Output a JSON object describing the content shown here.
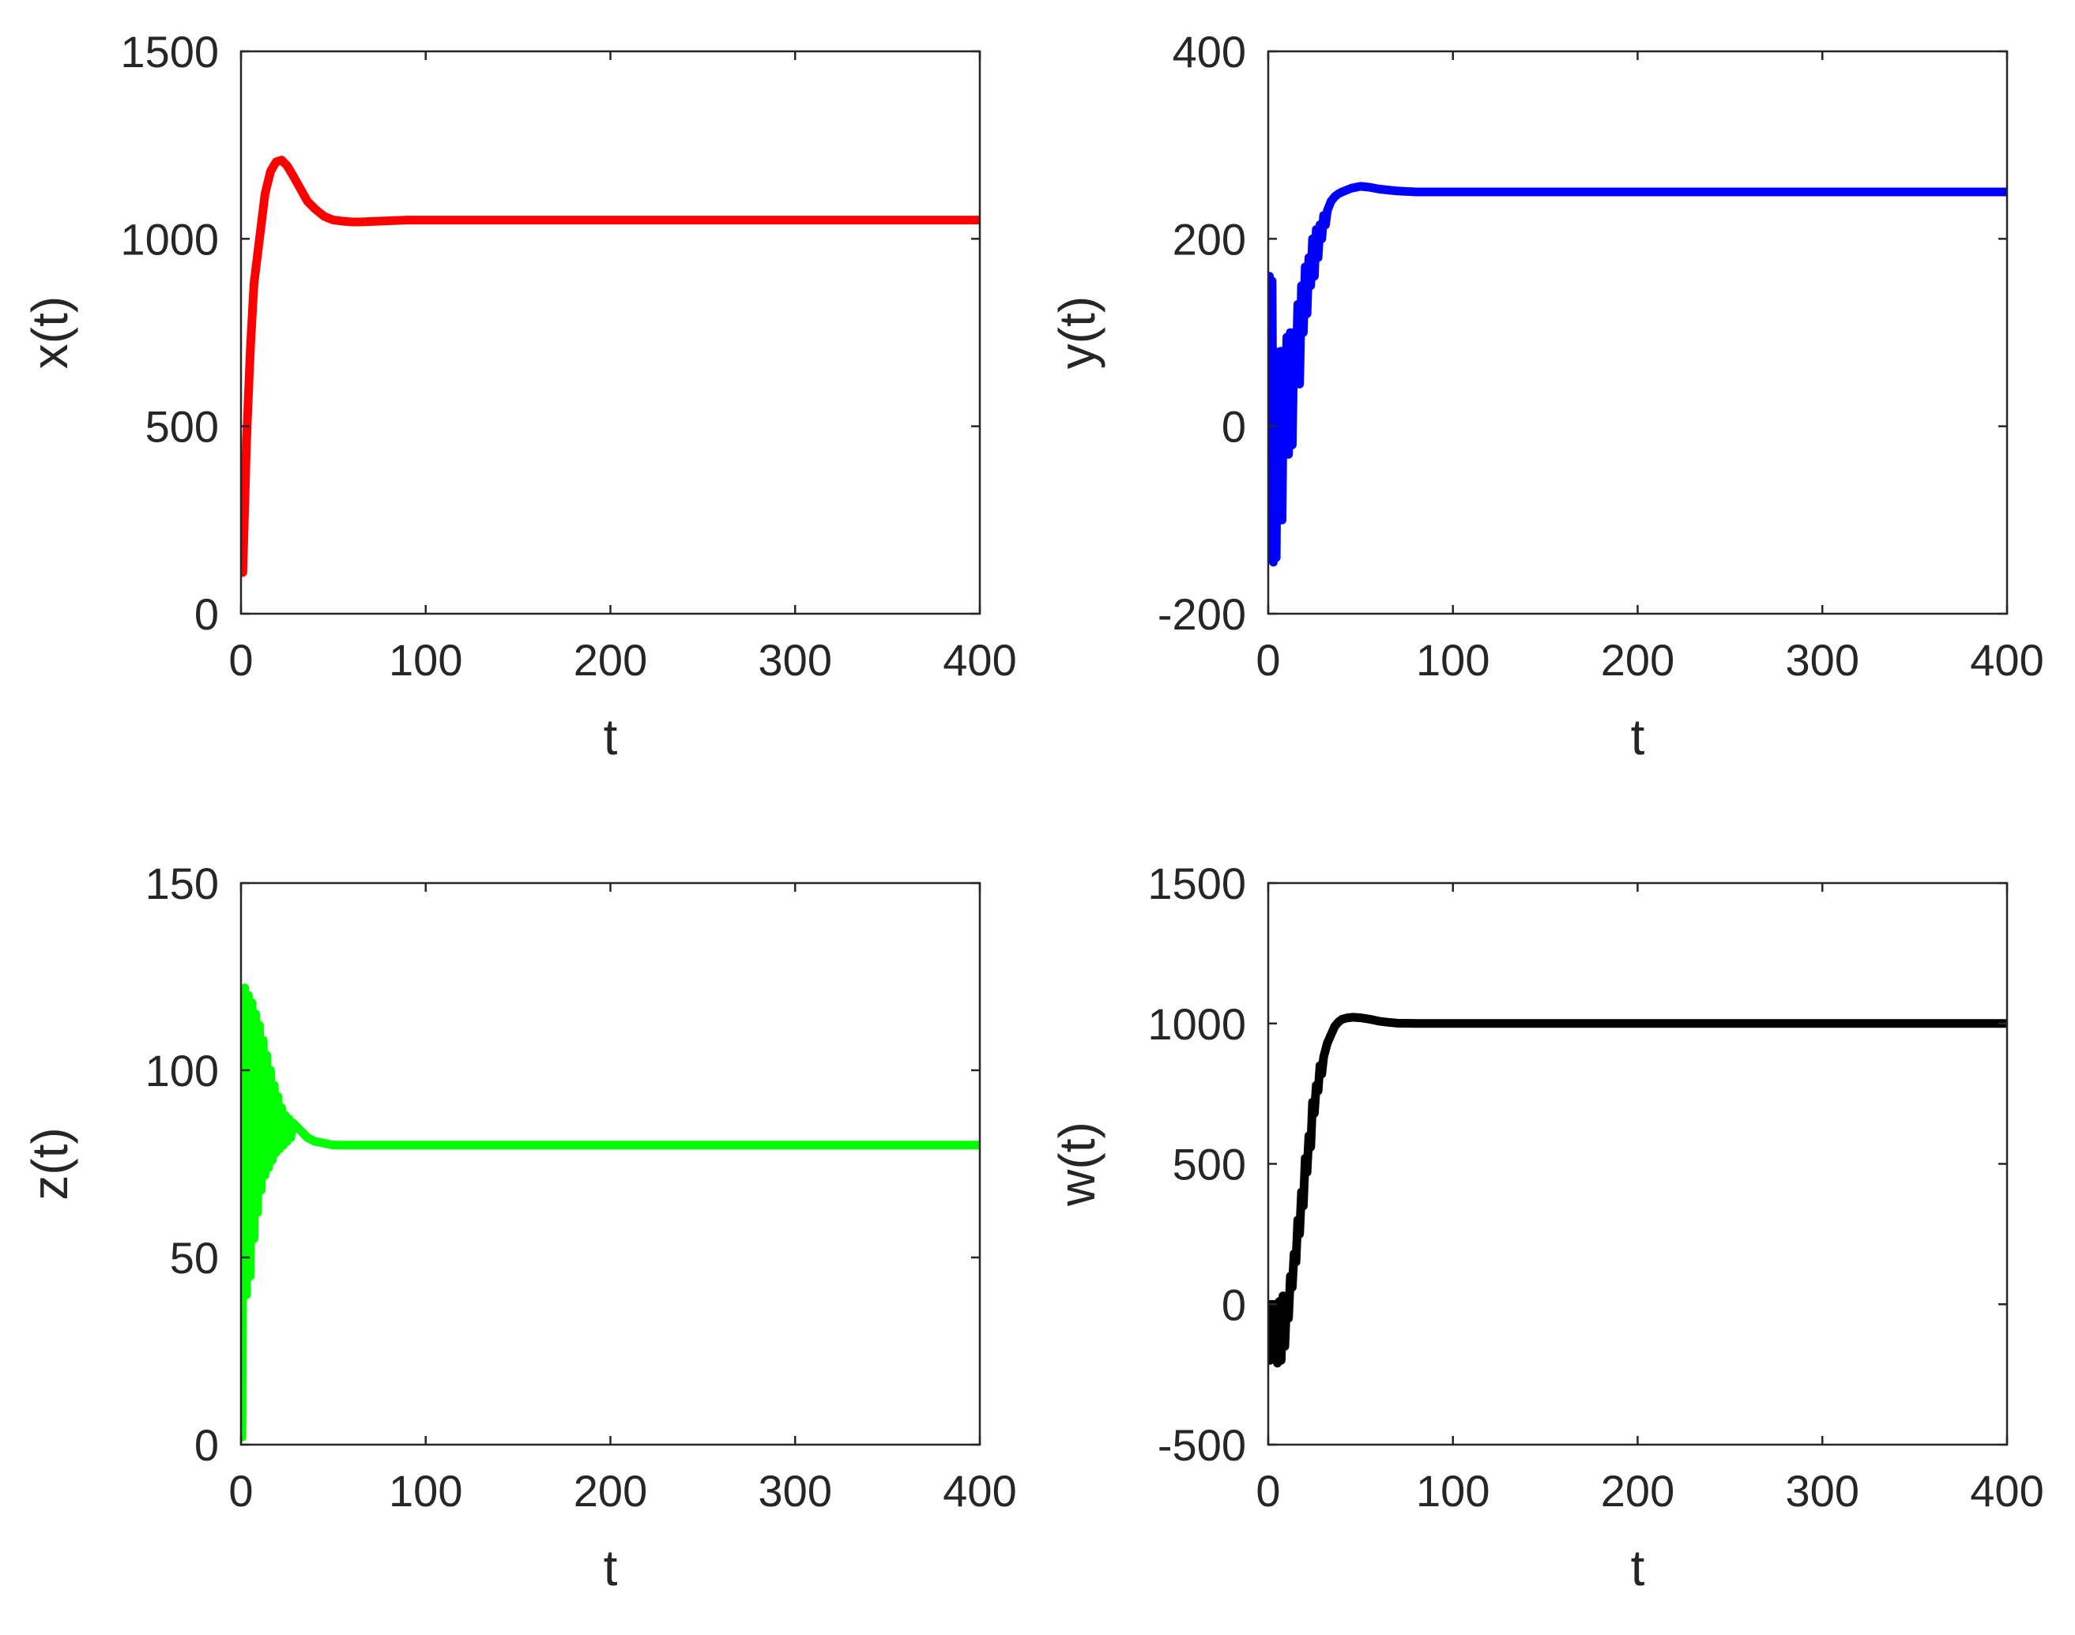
{
  "chart_data": [
    {
      "id": "x",
      "type": "line",
      "xlabel": "t",
      "ylabel": "x(t)",
      "xlim": [
        0,
        400
      ],
      "ylim": [
        0,
        1500
      ],
      "xticks": [
        0,
        100,
        200,
        300,
        400
      ],
      "yticks": [
        0,
        500,
        1000,
        1500
      ],
      "xtick_labels": [
        "0",
        "100",
        "200",
        "300",
        "400"
      ],
      "ytick_labels": [
        "0",
        "500",
        "1000",
        "1500"
      ],
      "grid": false,
      "color": "#ff0000",
      "series": [
        {
          "x": [
            0,
            1,
            3,
            5,
            7,
            10,
            13,
            16,
            19,
            22,
            25,
            28,
            32,
            36,
            40,
            45,
            50,
            55,
            60,
            65,
            70,
            80,
            90,
            100,
            150,
            200,
            300,
            400
          ],
          "y": [
            110,
            110,
            460,
            700,
            880,
            1000,
            1120,
            1180,
            1205,
            1210,
            1195,
            1170,
            1135,
            1100,
            1080,
            1060,
            1050,
            1047,
            1045,
            1045,
            1046,
            1048,
            1050,
            1050,
            1050,
            1050,
            1050,
            1050
          ]
        }
      ]
    },
    {
      "id": "y",
      "type": "line",
      "xlabel": "t",
      "ylabel": "y(t)",
      "xlim": [
        0,
        400
      ],
      "ylim": [
        -200,
        400
      ],
      "xticks": [
        0,
        100,
        200,
        300,
        400
      ],
      "yticks": [
        -200,
        0,
        200,
        400
      ],
      "xtick_labels": [
        "0",
        "100",
        "200",
        "300",
        "400"
      ],
      "ytick_labels": [
        "-200",
        "0",
        "200",
        "400"
      ],
      "grid": false,
      "color": "#0000ff",
      "series": [
        {
          "x": [
            0,
            0.7,
            1.4,
            2.1,
            2.8,
            3.5,
            4.3,
            5.1,
            5.9,
            6.7,
            7.5,
            8.3,
            9.2,
            10.1,
            11,
            12,
            13,
            14,
            15,
            16,
            17,
            18,
            19,
            20,
            21,
            22,
            23,
            24,
            25,
            26,
            27,
            28,
            29,
            30,
            31,
            32,
            34,
            36,
            38,
            40,
            45,
            50,
            55,
            60,
            65,
            70,
            80,
            90,
            100,
            150,
            200,
            300,
            400
          ],
          "y": [
            45,
            160,
            20,
            155,
            -145,
            80,
            -140,
            75,
            -95,
            80,
            -100,
            60,
            30,
            95,
            -30,
            100,
            -20,
            100,
            50,
            130,
            45,
            150,
            100,
            170,
            120,
            180,
            150,
            200,
            160,
            210,
            180,
            215,
            200,
            225,
            215,
            230,
            240,
            245,
            248,
            250,
            254,
            256,
            255,
            253,
            252,
            251,
            250,
            250,
            250,
            250,
            250,
            250,
            250
          ]
        }
      ]
    },
    {
      "id": "z",
      "type": "line",
      "xlabel": "t",
      "ylabel": "z(t)",
      "xlim": [
        0,
        400
      ],
      "ylim": [
        0,
        150
      ],
      "xticks": [
        0,
        100,
        200,
        300,
        400
      ],
      "yticks": [
        0,
        50,
        100,
        150
      ],
      "xtick_labels": [
        "0",
        "100",
        "200",
        "300",
        "400"
      ],
      "ytick_labels": [
        "0",
        "50",
        "100",
        "150"
      ],
      "grid": false,
      "color": "#00ff00",
      "series": [
        {
          "x": [
            0,
            0.5,
            1,
            1.5,
            2,
            3,
            4,
            5,
            6,
            7,
            8,
            9,
            10,
            11,
            12,
            13,
            14,
            15,
            16,
            17,
            18,
            19,
            20,
            21,
            22,
            23,
            24,
            25,
            26,
            27,
            28,
            30,
            32,
            34,
            36,
            38,
            40,
            45,
            50,
            55,
            60,
            70,
            80,
            100,
            150,
            200,
            300,
            400
          ],
          "y": [
            2,
            2,
            60,
            100,
            122,
            40,
            120,
            45,
            118,
            55,
            115,
            62,
            112,
            68,
            108,
            72,
            104,
            74,
            100,
            76,
            96,
            78,
            93,
            79,
            90,
            80,
            88,
            81,
            87,
            82,
            86,
            85,
            84,
            83,
            82,
            81.5,
            81,
            80.5,
            80,
            80,
            80,
            80,
            80,
            80,
            80,
            80,
            80,
            80
          ]
        }
      ]
    },
    {
      "id": "w",
      "type": "line",
      "xlabel": "t",
      "ylabel": "w(t)",
      "xlim": [
        0,
        400
      ],
      "ylim": [
        -500,
        1500
      ],
      "xticks": [
        0,
        100,
        200,
        300,
        400
      ],
      "yticks": [
        -500,
        0,
        500,
        1000,
        1500
      ],
      "xtick_labels": [
        "0",
        "100",
        "200",
        "300",
        "400"
      ],
      "ytick_labels": [
        "-500",
        "0",
        "500",
        "1000",
        "1500"
      ],
      "grid": false,
      "color": "#000000",
      "series": [
        {
          "x": [
            0,
            1,
            2,
            3,
            4,
            5,
            6,
            7,
            8,
            9,
            10,
            11,
            12,
            13,
            14,
            15,
            16,
            17,
            18,
            19,
            20,
            21,
            22,
            23,
            24,
            25,
            26,
            27,
            28,
            29,
            30,
            32,
            34,
            36,
            38,
            40,
            43,
            46,
            50,
            55,
            60,
            65,
            70,
            80,
            90,
            100,
            150,
            200,
            300,
            400
          ],
          "y": [
            0,
            -200,
            0,
            -180,
            0,
            -210,
            10,
            -200,
            30,
            -150,
            20,
            -50,
            100,
            60,
            180,
            150,
            300,
            250,
            400,
            350,
            520,
            470,
            600,
            560,
            720,
            680,
            780,
            760,
            850,
            820,
            880,
            930,
            960,
            990,
            1005,
            1015,
            1020,
            1022,
            1020,
            1015,
            1008,
            1004,
            1001,
            1000,
            1000,
            1000,
            1000,
            1000,
            1000,
            1000
          ]
        }
      ]
    }
  ]
}
